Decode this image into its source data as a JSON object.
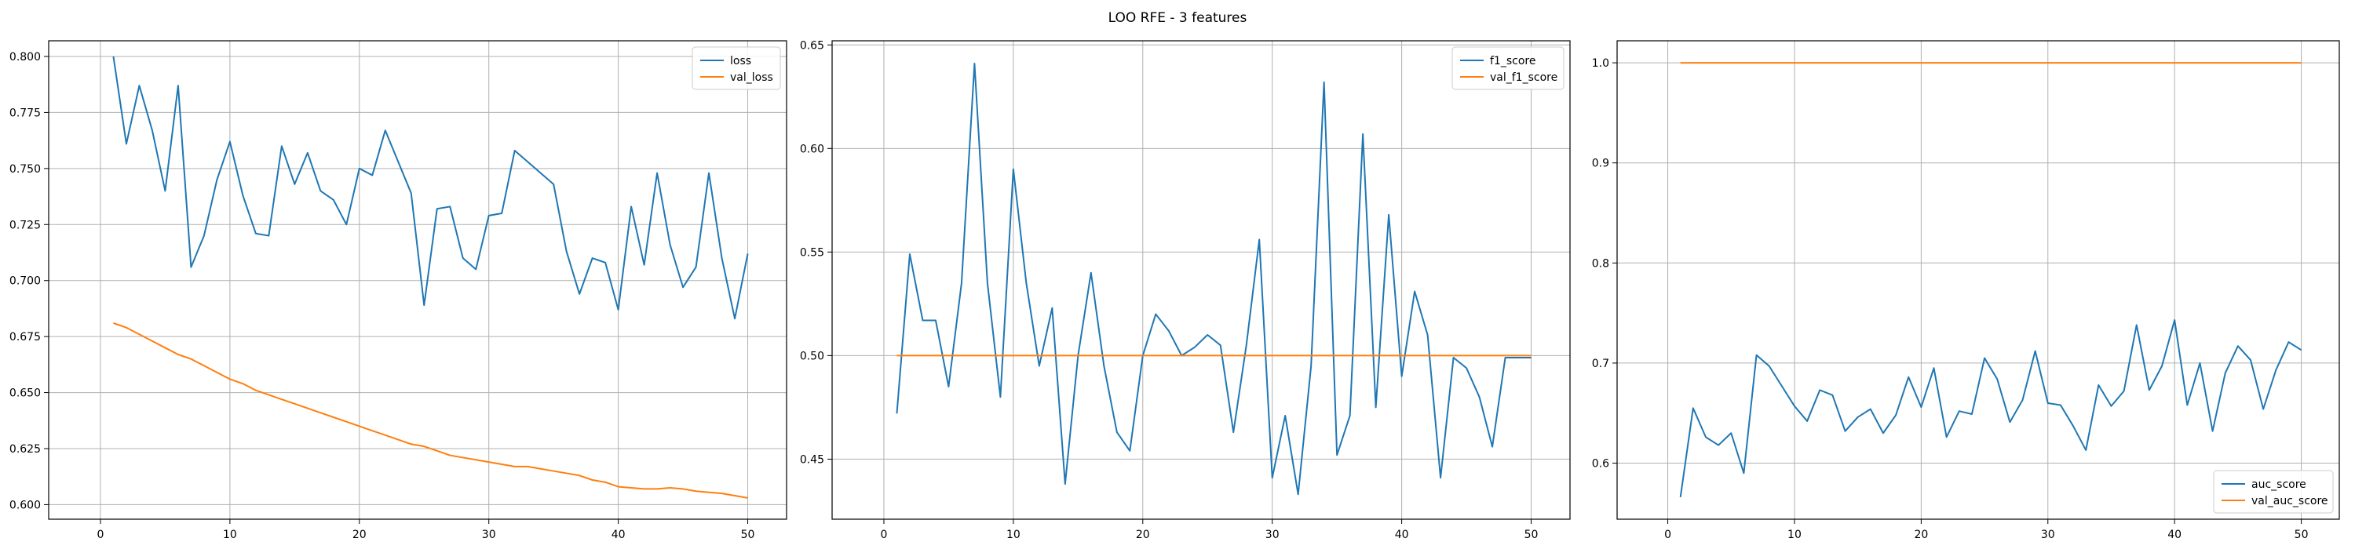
{
  "figure": {
    "title": "LOO RFE - 3 features"
  },
  "colors": {
    "series1": "#1f77b4",
    "series2": "#ff7f0e",
    "grid": "#b0b0b0",
    "axis": "#000000"
  },
  "chart_data": [
    {
      "type": "line",
      "x": [
        1,
        2,
        3,
        4,
        5,
        6,
        7,
        8,
        9,
        10,
        11,
        12,
        13,
        14,
        15,
        16,
        17,
        18,
        19,
        20,
        21,
        22,
        23,
        24,
        25,
        26,
        27,
        28,
        29,
        30,
        31,
        32,
        33,
        34,
        35,
        36,
        37,
        38,
        39,
        40,
        41,
        42,
        43,
        44,
        45,
        46,
        47,
        48,
        49,
        50
      ],
      "xlim": [
        -4,
        53
      ],
      "ylim": [
        0.5935,
        0.807
      ],
      "grid": true,
      "legend": "top-right",
      "xticks": [
        0,
        10,
        20,
        30,
        40,
        50
      ],
      "yticks": [
        0.6,
        0.625,
        0.65,
        0.675,
        0.7,
        0.725,
        0.75,
        0.775,
        0.8
      ],
      "yticklabels": [
        "0.600",
        "0.625",
        "0.650",
        "0.675",
        "0.700",
        "0.725",
        "0.750",
        "0.775",
        "0.800"
      ],
      "series": [
        {
          "name": "loss",
          "values": [
            0.8,
            0.761,
            0.787,
            0.767,
            0.74,
            0.787,
            0.706,
            0.72,
            0.745,
            0.762,
            0.738,
            0.721,
            0.72,
            0.76,
            0.743,
            0.757,
            0.74,
            0.736,
            0.725,
            0.75,
            0.747,
            0.767,
            0.753,
            0.739,
            0.689,
            0.732,
            0.733,
            0.71,
            0.705,
            0.729,
            0.73,
            0.758,
            0.753,
            0.748,
            0.743,
            0.713,
            0.694,
            0.71,
            0.708,
            0.687,
            0.733,
            0.707,
            0.748,
            0.716,
            0.697,
            0.706,
            0.748,
            0.71,
            0.683,
            0.712
          ]
        },
        {
          "name": "val_loss",
          "values": [
            0.681,
            0.679,
            0.676,
            0.673,
            0.67,
            0.667,
            0.665,
            0.662,
            0.659,
            0.656,
            0.654,
            0.651,
            0.649,
            0.647,
            0.645,
            0.643,
            0.641,
            0.639,
            0.637,
            0.635,
            0.633,
            0.631,
            0.629,
            0.627,
            0.626,
            0.624,
            0.622,
            0.621,
            0.62,
            0.619,
            0.618,
            0.617,
            0.617,
            0.616,
            0.615,
            0.614,
            0.613,
            0.611,
            0.61,
            0.608,
            0.6075,
            0.607,
            0.607,
            0.6075,
            0.607,
            0.606,
            0.6055,
            0.605,
            0.604,
            0.603
          ]
        }
      ]
    },
    {
      "type": "line",
      "x": [
        1,
        2,
        3,
        4,
        5,
        6,
        7,
        8,
        9,
        10,
        11,
        12,
        13,
        14,
        15,
        16,
        17,
        18,
        19,
        20,
        21,
        22,
        23,
        24,
        25,
        26,
        27,
        28,
        29,
        30,
        31,
        32,
        33,
        34,
        35,
        36,
        37,
        38,
        39,
        40,
        41,
        42,
        43,
        44,
        45,
        46,
        47,
        48,
        49,
        50
      ],
      "xlim": [
        -4,
        53
      ],
      "ylim": [
        0.421,
        0.652
      ],
      "grid": true,
      "legend": "top-right",
      "xticks": [
        0,
        10,
        20,
        30,
        40,
        50
      ],
      "yticks": [
        0.45,
        0.5,
        0.55,
        0.6,
        0.65
      ],
      "yticklabels": [
        "0.45",
        "0.50",
        "0.55",
        "0.60",
        "0.65"
      ],
      "series": [
        {
          "name": "f1_score",
          "values": [
            0.472,
            0.549,
            0.517,
            0.517,
            0.485,
            0.535,
            0.641,
            0.535,
            0.48,
            0.59,
            0.535,
            0.495,
            0.523,
            0.438,
            0.5,
            0.54,
            0.495,
            0.463,
            0.454,
            0.5,
            0.52,
            0.512,
            0.5,
            0.504,
            0.51,
            0.505,
            0.463,
            0.505,
            0.556,
            0.441,
            0.471,
            0.433,
            0.495,
            0.632,
            0.452,
            0.471,
            0.607,
            0.475,
            0.568,
            0.49,
            0.531,
            0.51,
            0.441,
            0.499,
            0.494,
            0.48,
            0.456,
            0.499,
            0.499,
            0.499
          ]
        },
        {
          "name": "val_f1_score",
          "values": [
            0.5,
            0.5,
            0.5,
            0.5,
            0.5,
            0.5,
            0.5,
            0.5,
            0.5,
            0.5,
            0.5,
            0.5,
            0.5,
            0.5,
            0.5,
            0.5,
            0.5,
            0.5,
            0.5,
            0.5,
            0.5,
            0.5,
            0.5,
            0.5,
            0.5,
            0.5,
            0.5,
            0.5,
            0.5,
            0.5,
            0.5,
            0.5,
            0.5,
            0.5,
            0.5,
            0.5,
            0.5,
            0.5,
            0.5,
            0.5,
            0.5,
            0.5,
            0.5,
            0.5,
            0.5,
            0.5,
            0.5,
            0.5,
            0.5,
            0.5
          ]
        }
      ]
    },
    {
      "type": "line",
      "x": [
        1,
        2,
        3,
        4,
        5,
        6,
        7,
        8,
        9,
        10,
        11,
        12,
        13,
        14,
        15,
        16,
        17,
        18,
        19,
        20,
        21,
        22,
        23,
        24,
        25,
        26,
        27,
        28,
        29,
        30,
        31,
        32,
        33,
        34,
        35,
        36,
        37,
        38,
        39,
        40,
        41,
        42,
        43,
        44,
        45,
        46,
        47,
        48,
        49,
        50
      ],
      "xlim": [
        -4,
        53
      ],
      "ylim": [
        0.544,
        1.022
      ],
      "grid": true,
      "legend": "bottom-right",
      "xticks": [
        0,
        10,
        20,
        30,
        40,
        50
      ],
      "yticks": [
        0.6,
        0.7,
        0.8,
        0.9,
        1.0
      ],
      "yticklabels": [
        "0.6",
        "0.7",
        "0.8",
        "0.9",
        "1.0"
      ],
      "series": [
        {
          "name": "auc_score",
          "values": [
            0.566,
            0.655,
            0.626,
            0.618,
            0.63,
            0.59,
            0.708,
            0.697,
            0.677,
            0.657,
            0.642,
            0.673,
            0.668,
            0.632,
            0.646,
            0.654,
            0.63,
            0.648,
            0.686,
            0.656,
            0.695,
            0.626,
            0.652,
            0.649,
            0.705,
            0.684,
            0.641,
            0.663,
            0.712,
            0.66,
            0.658,
            0.637,
            0.613,
            0.678,
            0.657,
            0.672,
            0.738,
            0.673,
            0.697,
            0.743,
            0.658,
            0.7,
            0.632,
            0.69,
            0.717,
            0.703,
            0.654,
            0.693,
            0.721,
            0.713
          ]
        },
        {
          "name": "val_auc_score",
          "values": [
            1.0,
            1.0,
            1.0,
            1.0,
            1.0,
            1.0,
            1.0,
            1.0,
            1.0,
            1.0,
            1.0,
            1.0,
            1.0,
            1.0,
            1.0,
            1.0,
            1.0,
            1.0,
            1.0,
            1.0,
            1.0,
            1.0,
            1.0,
            1.0,
            1.0,
            1.0,
            1.0,
            1.0,
            1.0,
            1.0,
            1.0,
            1.0,
            1.0,
            1.0,
            1.0,
            1.0,
            1.0,
            1.0,
            1.0,
            1.0,
            1.0,
            1.0,
            1.0,
            1.0,
            1.0,
            1.0,
            1.0,
            1.0,
            1.0,
            1.0
          ]
        }
      ]
    }
  ]
}
